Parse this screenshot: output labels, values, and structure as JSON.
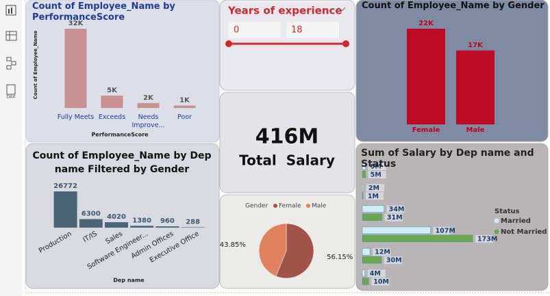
{
  "sidebar": {
    "dax": "DAX"
  },
  "slicer": {
    "title": "Years of experience",
    "range": [
      0,
      18
    ]
  },
  "card": {
    "value": "416M",
    "label": "Total  Salary"
  },
  "chart_data": [
    {
      "type": "bar",
      "title": "Count of Employee_Name by PerformanceScore",
      "x_label": "PerformanceScore",
      "y_label": "Count of Employee_Name",
      "categories": [
        "Fully Meets",
        "Exceeds",
        "Needs Improve...",
        "Poor"
      ],
      "values": [
        32000,
        5000,
        2000,
        1000
      ],
      "value_labels": [
        "32K",
        "5K",
        "2K",
        "1K"
      ],
      "color": "#c48a8a"
    },
    {
      "type": "bar",
      "title": "Count of Employee_Name by Gender",
      "categories": [
        "Female",
        "Male"
      ],
      "values": [
        22000,
        17000
      ],
      "value_labels": [
        "22K",
        "17K"
      ],
      "color": "#c4001a"
    },
    {
      "type": "bar",
      "title": "Count of Employee_Name by Dep name Filtered by Gender",
      "x_label": "Dep name",
      "categories": [
        "Production",
        "IT/IS",
        "Sales",
        "Software Engineer...",
        "Admin Offices",
        "Executive Office"
      ],
      "values": [
        26772,
        6300,
        4020,
        1380,
        960,
        288
      ],
      "color": "#3e5b6b"
    },
    {
      "type": "hbar",
      "title": "Sum of Salary by Dep name and Status",
      "legend_title": "Status",
      "categories": [
        null,
        null,
        null,
        null,
        null,
        null
      ],
      "series": [
        {
          "name": "Married",
          "color": "#cdeef6",
          "values": [
            5000000,
            2000000,
            34000000,
            107000000,
            12000000,
            4000000
          ],
          "value_labels": [
            "5M",
            "2M",
            "34M",
            "107M",
            "12M",
            "4M"
          ]
        },
        {
          "name": "Not Married",
          "color": "#6aa84f",
          "values": [
            5000000,
            1000000,
            31000000,
            173000000,
            30000000,
            10000000
          ],
          "value_labels": [
            "5M",
            "1M",
            "31M",
            "173M",
            "30M",
            "10M"
          ]
        }
      ]
    },
    {
      "type": "pie",
      "legend_title": "Gender",
      "categories": [
        "Female",
        "Male"
      ],
      "values": [
        56.15,
        43.85
      ],
      "value_labels": [
        "56.15%",
        "43.85%"
      ],
      "colors": [
        "#a3544a",
        "#e0825f"
      ]
    }
  ]
}
